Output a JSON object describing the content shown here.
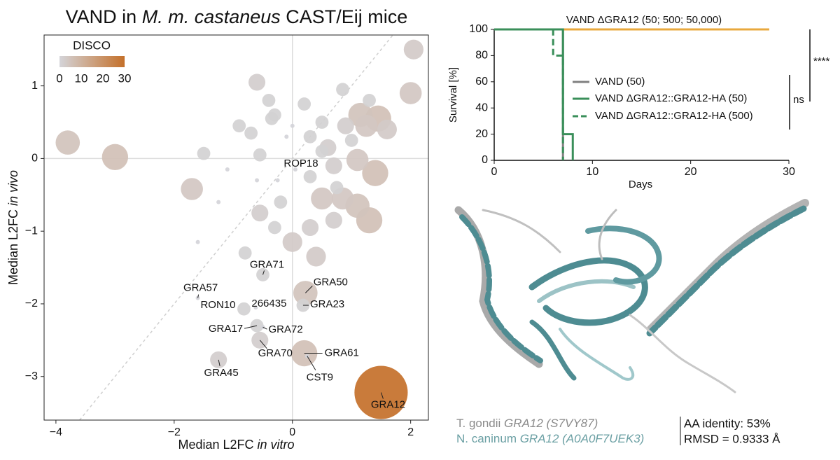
{
  "chart_data": [
    {
      "type": "scatter",
      "title": [
        "VAND in ",
        "M. m. castaneus",
        " CAST/Eij mice"
      ],
      "x_label": [
        "Median L2FC ",
        "in vitro"
      ],
      "y_label": [
        "Median L2FC ",
        "in vivo"
      ],
      "xlim": [
        -4.2,
        2.3
      ],
      "ylim": [
        -3.6,
        1.7
      ],
      "xticks": [
        {
          "value": -4,
          "label": "−4"
        },
        {
          "value": -2,
          "label": "−2"
        },
        0,
        2
      ],
      "yticks": [
        {
          "value": -3,
          "label": "−3"
        },
        {
          "value": -2,
          "label": "−2"
        },
        {
          "value": -1,
          "label": "−1"
        },
        0,
        1
      ],
      "colorbar": {
        "title": "DISCO",
        "lim": [
          0,
          30
        ],
        "ticks": [
          0,
          10,
          20,
          30
        ],
        "colors": [
          "#d4d4d9",
          "#c4702a"
        ]
      },
      "x": [
        1.5,
        0.05,
        -0.5,
        -1.6,
        -0.82,
        -0.62,
        0.22,
        0.18,
        -0.6,
        -0.5,
        -0.55,
        0.2,
        0.25,
        -1.25,
        -3.8,
        -3.0,
        -1.7,
        2.05,
        2.0,
        1.45,
        1.15,
        1.25,
        1.1,
        1.4,
        1.1,
        1.3,
        0.85,
        0.5,
        0.0,
        0.4,
        -0.6,
        -0.55,
        -0.7,
        -1.5,
        -0.3,
        0.3,
        0.6,
        0.5,
        0.85,
        0.9,
        1.0,
        0.7,
        -0.2,
        -0.55,
        -0.3,
        0.3,
        0.7,
        -0.8,
        -1.6,
        -1.25,
        -0.9,
        -0.4,
        0.2,
        0.5,
        -0.1,
        -0.25,
        -0.6,
        -0.35,
        1.3,
        1.6,
        0.75,
        0.3,
        0.0,
        -1.1
      ],
      "y": [
        -3.22,
        -0.15,
        -1.6,
        -1.92,
        -2.07,
        -2.05,
        -1.85,
        -2.02,
        -2.3,
        -2.32,
        -2.5,
        -2.68,
        -2.72,
        -2.77,
        0.22,
        0.02,
        -0.42,
        1.5,
        0.9,
        0.55,
        0.6,
        0.45,
        -0.02,
        -0.2,
        -0.65,
        -0.85,
        -0.55,
        -0.55,
        -1.15,
        -1.35,
        1.05,
        0.05,
        0.35,
        0.07,
        0.6,
        0.3,
        0.15,
        0.5,
        0.95,
        0.45,
        0.25,
        -0.1,
        -0.6,
        -0.75,
        -0.95,
        -0.95,
        -0.85,
        -1.3,
        -1.15,
        -0.6,
        0.45,
        0.8,
        0.75,
        0.1,
        0.3,
        -0.3,
        -0.3,
        0.55,
        0.8,
        0.4,
        -0.4,
        -0.25,
        0.45,
        -0.15
      ],
      "size": [
        30,
        0,
        1,
        0,
        1,
        0,
        5,
        1,
        1,
        0,
        2,
        6,
        0,
        2,
        5,
        6,
        4,
        3,
        4,
        6,
        5,
        4,
        4,
        6,
        5,
        6,
        4,
        4,
        3,
        3,
        2,
        1,
        1,
        1,
        1,
        1,
        2,
        1,
        1,
        2,
        1,
        2,
        1,
        2,
        1,
        2,
        2,
        1,
        0,
        0,
        1,
        1,
        1,
        1,
        0,
        0,
        0,
        1,
        1,
        3,
        1,
        1,
        0,
        0
      ],
      "labels": [
        "GRA12",
        "ROP18",
        "GRA71",
        "GRA57",
        "RON10",
        "266435",
        "GRA50",
        "GRA23",
        "GRA17",
        "GRA72",
        "GRA70",
        "GRA61",
        "CST9",
        "GRA45",
        null,
        null,
        null,
        null,
        null,
        null,
        null,
        null,
        null,
        null,
        null,
        null,
        null,
        null,
        null,
        null,
        null,
        null,
        null,
        null,
        null,
        null,
        null,
        null,
        null,
        null,
        null,
        null,
        null,
        null,
        null,
        null,
        null,
        null,
        null,
        null,
        null,
        null,
        null,
        null,
        null,
        null,
        null,
        null,
        null,
        null,
        null,
        null,
        null,
        null
      ]
    },
    {
      "type": "line",
      "x_label": "Days",
      "y_label": "Survival [%]",
      "xlim": [
        0,
        30
      ],
      "ylim": [
        0,
        100
      ],
      "xticks": [
        0,
        10,
        20,
        30
      ],
      "yticks": [
        0,
        20,
        40,
        60,
        80,
        100
      ],
      "step": true,
      "series": [
        {
          "name": "VAND ΔGRA12 (50; 500; 50,000)",
          "color": "#e8a83e",
          "dashed": false,
          "x": [
            0,
            28
          ],
          "values": [
            100,
            100
          ]
        },
        {
          "name": "VAND (50)",
          "color": "#808080",
          "dashed": false,
          "x": [
            0,
            7
          ],
          "values": [
            100,
            0
          ]
        },
        {
          "name": "VAND ΔGRA12::GRA12-HA (50)",
          "color": "#3a8f5a",
          "dashed": false,
          "x": [
            0,
            7,
            8
          ],
          "values": [
            100,
            20,
            0
          ]
        },
        {
          "name": "VAND ΔGRA12::GRA12-HA (500)",
          "color": "#3a8f5a",
          "dashed": true,
          "x": [
            0,
            6,
            7
          ],
          "values": [
            100,
            80,
            0
          ]
        }
      ],
      "annotations": [
        "****",
        "ns"
      ]
    }
  ],
  "structure_legend": {
    "tgondii": [
      "T. gondii",
      " GRA12 (S7VY87)"
    ],
    "ncaninum": [
      "N. caninum",
      " GRA12 (A0A0F7UEK3)"
    ],
    "identity": "AA identity: 53%",
    "rmsd": "RMSD = 0.9333 Å"
  }
}
